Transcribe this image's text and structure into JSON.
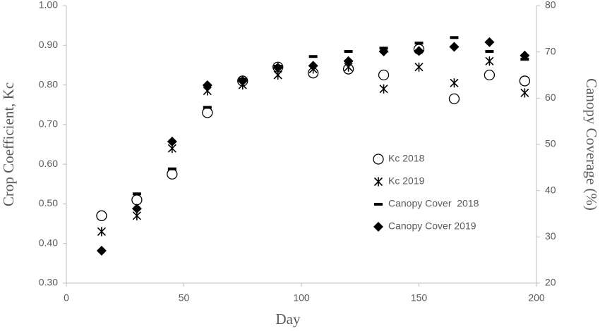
{
  "chart_data": {
    "type": "scatter",
    "xlabel": "Day",
    "ylabel": "Crop Coefficient, Kc",
    "y2label": "Canopy Coverage (%)",
    "x": [
      15,
      30,
      45,
      60,
      75,
      90,
      105,
      120,
      135,
      150,
      165,
      180,
      195
    ],
    "xlim": [
      0,
      200
    ],
    "xticks": [
      0,
      50,
      100,
      150,
      200
    ],
    "ylim": [
      0.3,
      1.0
    ],
    "yticks": [
      {
        "value": 0.3,
        "label": "0.30"
      },
      {
        "value": 0.4,
        "label": "0.40"
      },
      {
        "value": 0.5,
        "label": "0.50"
      },
      {
        "value": 0.6,
        "label": "0.60"
      },
      {
        "value": 0.7,
        "label": "0.70"
      },
      {
        "value": 0.8,
        "label": "0.80"
      },
      {
        "value": 0.9,
        "label": "0.90"
      },
      {
        "value": 1.0,
        "label": "1.00"
      }
    ],
    "y2lim": [
      20,
      80
    ],
    "y2ticks": [
      20,
      30,
      40,
      50,
      60,
      70,
      80
    ],
    "series": [
      {
        "name": "Kc 2018",
        "color": "#000000",
        "marker": "circle",
        "values": [
          0.47,
          0.51,
          0.575,
          0.73,
          0.81,
          0.845,
          0.83,
          0.84,
          0.825,
          0.89,
          0.765,
          0.825,
          0.81
        ]
      },
      {
        "name": "Kc 2019",
        "color": "#000000",
        "marker": "asterisk",
        "values": [
          0.43,
          0.47,
          0.64,
          0.785,
          0.8,
          0.825,
          0.84,
          0.845,
          0.79,
          0.845,
          0.805,
          0.86,
          0.78
        ]
      },
      {
        "name": "Canopy Cover  2018",
        "color": "#000000",
        "marker": "dash",
        "axis": "y2",
        "values": [
          null,
          39.3,
          44.7,
          58,
          64.1,
          66.9,
          69,
          70.1,
          70.8,
          71.9,
          73.1,
          70.1,
          68.4
        ]
      },
      {
        "name": "Canopy Cover 2019",
        "color": "#000000",
        "marker": "diamond",
        "axis": "y2",
        "values": [
          27,
          36.1,
          50.6,
          62.8,
          63.7,
          66.6,
          67,
          68,
          70.1,
          70.2,
          71.1,
          72.1,
          69.2
        ]
      }
    ]
  }
}
